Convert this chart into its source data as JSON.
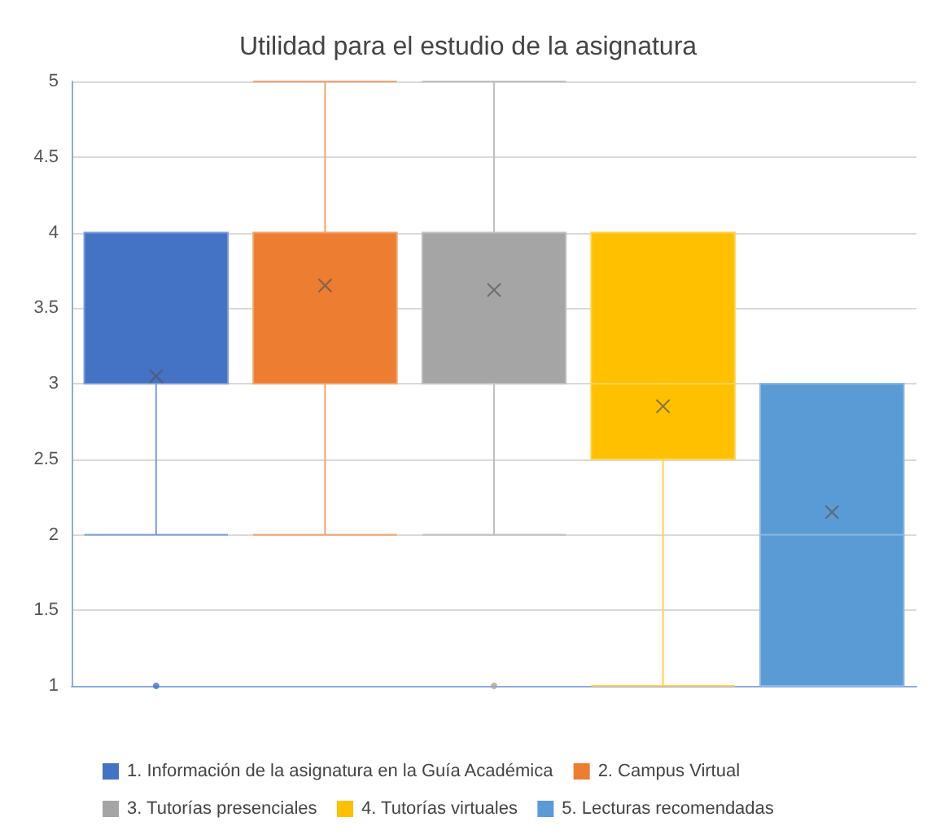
{
  "chart_data": {
    "type": "box",
    "title": "Utilidad para el estudio de la asignatura",
    "categories": [
      null
    ],
    "series": [
      {
        "name": "1. Información de la asignatura en la Guía Académica",
        "color": "#4472c4",
        "boxes": [
          {
            "low": 2,
            "q1": 3,
            "median": 3,
            "q3": 4,
            "high": 4,
            "mean": 3.05,
            "outliers": [
              1
            ]
          }
        ]
      },
      {
        "name": "2. Campus Virtual",
        "color": "#ed7d31",
        "boxes": [
          {
            "low": 2,
            "q1": 3,
            "median": 4,
            "q3": 4,
            "high": 5,
            "mean": 3.65
          }
        ]
      },
      {
        "name": "3. Tutorías presenciales",
        "color": "#a5a5a5",
        "boxes": [
          {
            "low": 2,
            "q1": 3,
            "median": 4,
            "q3": 4,
            "high": 5,
            "mean": 3.62,
            "outliers": [
              1
            ]
          }
        ]
      },
      {
        "name": "4. Tutorías virtuales",
        "color": "#ffc000",
        "boxes": [
          {
            "low": 1,
            "q1": 2.5,
            "median": 3,
            "q3": 4,
            "high": 4,
            "mean": 2.85
          }
        ]
      },
      {
        "name": "5. Lecturas recomendadas",
        "color": "#5b9bd5",
        "boxes": [
          {
            "low": 1,
            "q1": 1,
            "median": 2,
            "q3": 3,
            "high": 3,
            "mean": 2.15
          }
        ]
      }
    ],
    "ylim": [
      1,
      5
    ],
    "yticks": [
      1,
      1.5,
      2,
      2.5,
      3,
      3.5,
      4,
      4.5,
      5
    ],
    "grid": "y",
    "legend": "bottom",
    "tick_labels": "y",
    "marker": "cross"
  }
}
